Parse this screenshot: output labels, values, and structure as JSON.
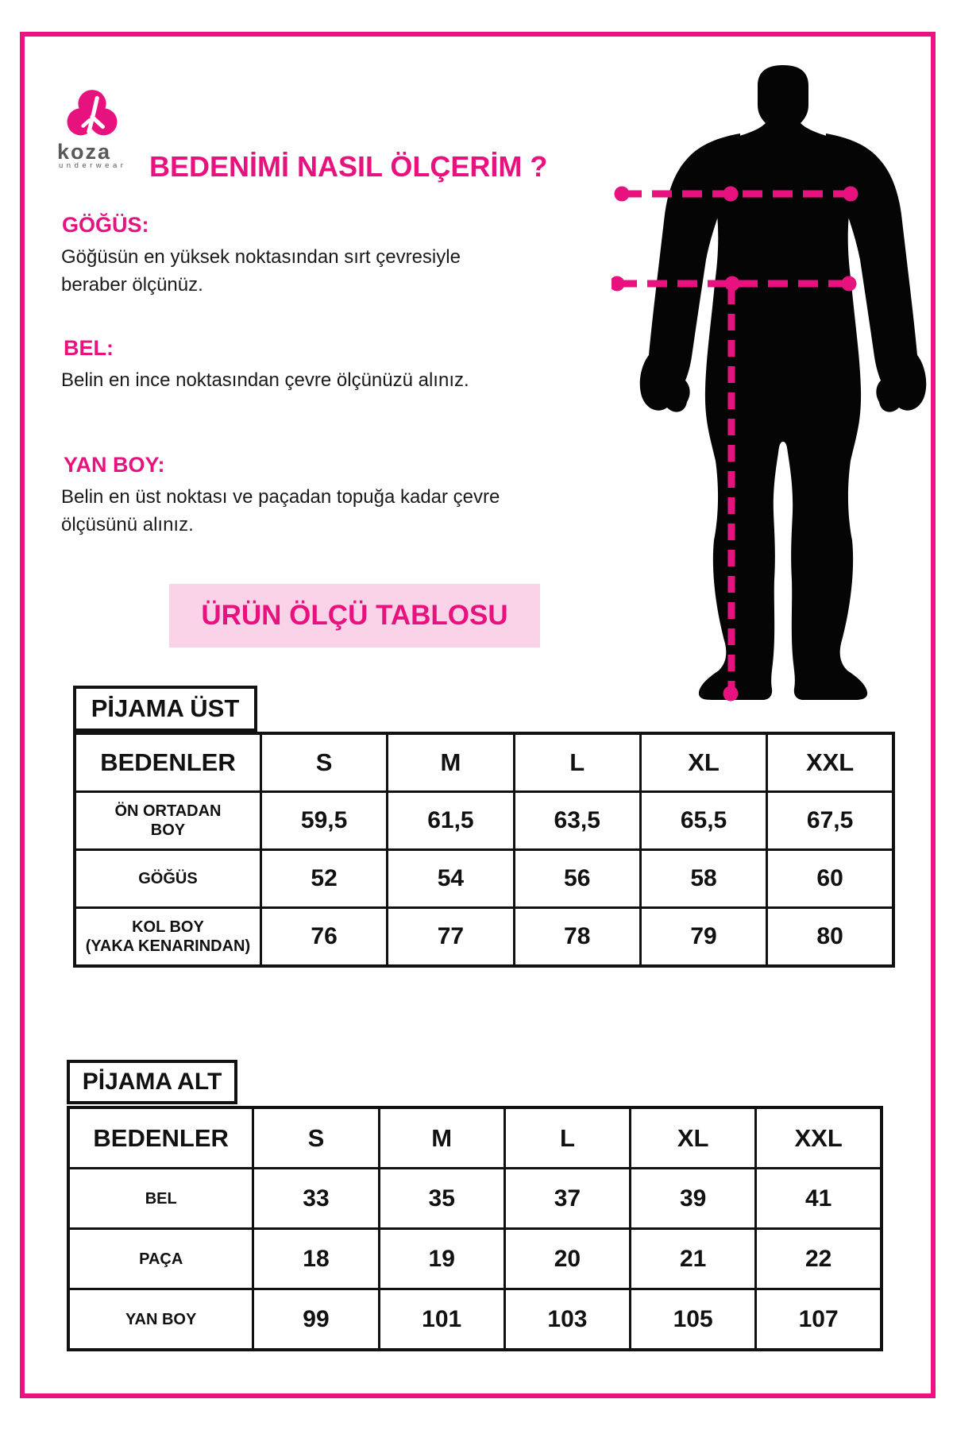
{
  "logo": {
    "brand": "koza",
    "subbrand": "underwear",
    "icon": "koza-trefoil-icon"
  },
  "title": "BEDENİMİ NASIL ÖLÇERİM ?",
  "sections": [
    {
      "heading": "GÖĞÜS:",
      "body": "Göğüsün en yüksek noktasından sırt çevresiyle beraber ölçünüz."
    },
    {
      "heading": "BEL:",
      "body": "Belin en ince noktasından çevre ölçünüzü alınız."
    },
    {
      "heading": "YAN BOY:",
      "body": "Belin en üst noktası ve paçadan topuğa kadar çevre ölçüsünü alınız."
    }
  ],
  "banner": "ÜRÜN ÖLÇÜ TABLOSU",
  "tables": [
    {
      "caption": "PİJAMA ÜST",
      "header": [
        "BEDENLER",
        "S",
        "M",
        "L",
        "XL",
        "XXL"
      ],
      "rows": [
        {
          "label": [
            "ÖN ORTADAN",
            "BOY"
          ],
          "values": [
            "59,5",
            "61,5",
            "63,5",
            "65,5",
            "67,5"
          ]
        },
        {
          "label": [
            "GÖĞÜS"
          ],
          "values": [
            "52",
            "54",
            "56",
            "58",
            "60"
          ]
        },
        {
          "label": [
            "KOL BOY",
            "(YAKA KENARINDAN)"
          ],
          "values": [
            "76",
            "77",
            "78",
            "79",
            "80"
          ]
        }
      ]
    },
    {
      "caption": "PİJAMA ALT",
      "header": [
        "BEDENLER",
        "S",
        "M",
        "L",
        "XL",
        "XXL"
      ],
      "rows": [
        {
          "label": [
            "BEL"
          ],
          "values": [
            "33",
            "35",
            "37",
            "39",
            "41"
          ]
        },
        {
          "label": [
            "PAÇA"
          ],
          "values": [
            "18",
            "19",
            "20",
            "21",
            "22"
          ]
        },
        {
          "label": [
            "YAN BOY"
          ],
          "values": [
            "99",
            "101",
            "103",
            "105",
            "107"
          ]
        }
      ]
    }
  ],
  "colors": {
    "accent": "#E8127F",
    "banner_bg": "#FBD3E8",
    "frame": "#EC1282",
    "silhouette": "#050505",
    "table_border": "#111111",
    "logo_text": "#58595B"
  }
}
